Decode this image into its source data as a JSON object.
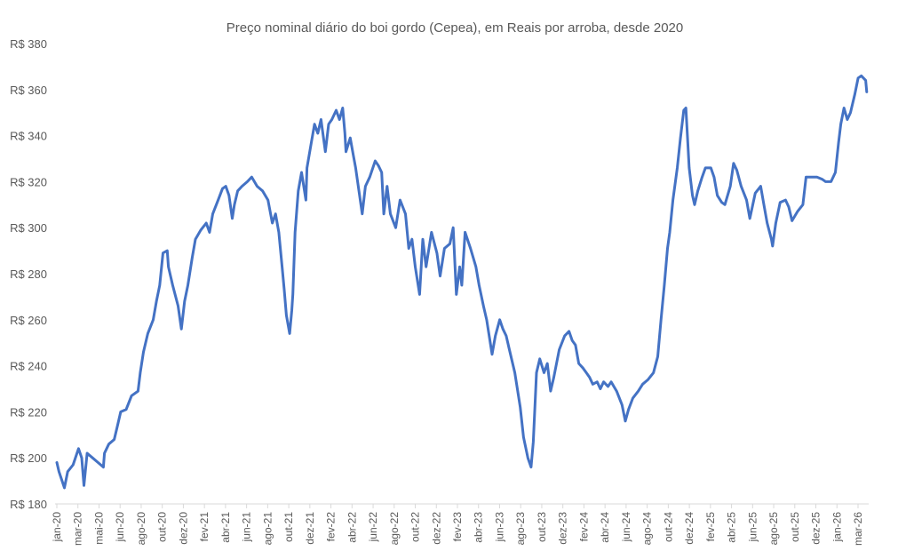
{
  "chart_data": {
    "type": "line",
    "title": "Preço nominal diário do boi gordo (Cepea), em Reais por arroba, desde 2020",
    "xlabel": "",
    "ylabel": "",
    "ylim": [
      180,
      380
    ],
    "y_ticks": [
      180,
      200,
      220,
      240,
      260,
      280,
      300,
      320,
      340,
      360,
      380
    ],
    "y_tick_labels": [
      "R$ 180",
      "R$ 200",
      "R$ 220",
      "R$ 240",
      "R$ 260",
      "R$ 280",
      "R$ 300",
      "R$ 320",
      "R$ 340",
      "R$ 360",
      "R$ 380"
    ],
    "x_unit": "months since jan-20",
    "xlim": [
      0,
      74
    ],
    "x_tick_labels": [
      "jan-20",
      "mar-20",
      "mai-20",
      "jun-20",
      "ago-20",
      "out-20",
      "dez-20",
      "fev-21",
      "abr-21",
      "jun-21",
      "ago-21",
      "out-21",
      "dez-21",
      "fev-22",
      "abr-22",
      "jun-22",
      "ago-22",
      "out-22",
      "dez-22",
      "fev-23",
      "abr-23",
      "jun-23",
      "ago-23",
      "out-23",
      "dez-23",
      "fev-24",
      "abr-24",
      "jun-24",
      "ago-24",
      "out-24",
      "dez-24",
      "fev-25",
      "abr-25",
      "jun-25",
      "ago-25",
      "out-25",
      "dez-25",
      "jan-26",
      "mar-26"
    ],
    "grid": false,
    "legend": "none",
    "series": [
      {
        "name": "Boi gordo (Cepea)",
        "color": "#4472C4",
        "points": [
          [
            0,
            198
          ],
          [
            0.2,
            194
          ],
          [
            0.7,
            187
          ],
          [
            1.0,
            194
          ],
          [
            1.5,
            197
          ],
          [
            2.0,
            204
          ],
          [
            2.3,
            200
          ],
          [
            2.5,
            188
          ],
          [
            2.8,
            202
          ],
          [
            3.3,
            200
          ],
          [
            3.8,
            198
          ],
          [
            4.3,
            196
          ],
          [
            4.4,
            202
          ],
          [
            4.8,
            206
          ],
          [
            5.3,
            208
          ],
          [
            5.6,
            214
          ],
          [
            5.9,
            220
          ],
          [
            6.4,
            221
          ],
          [
            6.9,
            227
          ],
          [
            7.5,
            229
          ],
          [
            7.7,
            237
          ],
          [
            8.0,
            246
          ],
          [
            8.4,
            254
          ],
          [
            8.9,
            260
          ],
          [
            9.2,
            268
          ],
          [
            9.5,
            275
          ],
          [
            9.8,
            289
          ],
          [
            10.2,
            290
          ],
          [
            10.3,
            283
          ],
          [
            10.7,
            275
          ],
          [
            11.2,
            266
          ],
          [
            11.5,
            256
          ],
          [
            11.8,
            268
          ],
          [
            12.1,
            275
          ],
          [
            12.5,
            287
          ],
          [
            12.8,
            295
          ],
          [
            13.3,
            299
          ],
          [
            13.8,
            302
          ],
          [
            14.1,
            298
          ],
          [
            14.4,
            306
          ],
          [
            14.9,
            312
          ],
          [
            15.3,
            317
          ],
          [
            15.6,
            318
          ],
          [
            15.9,
            314
          ],
          [
            16.2,
            304
          ],
          [
            16.4,
            310
          ],
          [
            16.7,
            316
          ],
          [
            17.1,
            318
          ],
          [
            17.6,
            320
          ],
          [
            18.0,
            322
          ],
          [
            18.5,
            318
          ],
          [
            19.0,
            316
          ],
          [
            19.5,
            312
          ],
          [
            19.9,
            302
          ],
          [
            20.2,
            306
          ],
          [
            20.5,
            298
          ],
          [
            20.8,
            283
          ],
          [
            21.0,
            273
          ],
          [
            21.2,
            262
          ],
          [
            21.5,
            254
          ],
          [
            21.7,
            264
          ],
          [
            21.8,
            271
          ],
          [
            22.0,
            298
          ],
          [
            22.3,
            316
          ],
          [
            22.6,
            324
          ],
          [
            23.0,
            312
          ],
          [
            23.1,
            326
          ],
          [
            23.5,
            337
          ],
          [
            23.8,
            345
          ],
          [
            24.1,
            341
          ],
          [
            24.4,
            347
          ],
          [
            24.8,
            333
          ],
          [
            25.1,
            345
          ],
          [
            25.4,
            347
          ],
          [
            25.8,
            351
          ],
          [
            26.1,
            347
          ],
          [
            26.4,
            352
          ],
          [
            26.6,
            341
          ],
          [
            26.7,
            333
          ],
          [
            27.1,
            339
          ],
          [
            27.4,
            331
          ],
          [
            27.6,
            326
          ],
          [
            27.9,
            316
          ],
          [
            28.2,
            306
          ],
          [
            28.5,
            318
          ],
          [
            28.9,
            322
          ],
          [
            29.4,
            329
          ],
          [
            29.7,
            327
          ],
          [
            30.0,
            324
          ],
          [
            30.2,
            306
          ],
          [
            30.5,
            318
          ],
          [
            30.8,
            306
          ],
          [
            31.3,
            300
          ],
          [
            31.7,
            312
          ],
          [
            32.2,
            306
          ],
          [
            32.5,
            291
          ],
          [
            32.8,
            295
          ],
          [
            33.1,
            283
          ],
          [
            33.5,
            271
          ],
          [
            33.8,
            295
          ],
          [
            34.1,
            283
          ],
          [
            34.6,
            298
          ],
          [
            35.1,
            289
          ],
          [
            35.4,
            279
          ],
          [
            35.8,
            291
          ],
          [
            36.3,
            293
          ],
          [
            36.6,
            300
          ],
          [
            36.9,
            271
          ],
          [
            37.2,
            283
          ],
          [
            37.4,
            275
          ],
          [
            37.7,
            298
          ],
          [
            38.2,
            291
          ],
          [
            38.7,
            283
          ],
          [
            39.0,
            275
          ],
          [
            39.4,
            266
          ],
          [
            39.7,
            260
          ],
          [
            40.2,
            245
          ],
          [
            40.5,
            253
          ],
          [
            40.9,
            260
          ],
          [
            41.2,
            256
          ],
          [
            41.5,
            253
          ],
          [
            41.8,
            247
          ],
          [
            42.3,
            237
          ],
          [
            42.8,
            222
          ],
          [
            43.1,
            209
          ],
          [
            43.5,
            200
          ],
          [
            43.8,
            196
          ],
          [
            44.0,
            207
          ],
          [
            44.3,
            237
          ],
          [
            44.6,
            243
          ],
          [
            45.0,
            237
          ],
          [
            45.3,
            241
          ],
          [
            45.6,
            229
          ],
          [
            45.9,
            235
          ],
          [
            46.4,
            247
          ],
          [
            46.9,
            253
          ],
          [
            47.3,
            255
          ],
          [
            47.6,
            251
          ],
          [
            47.9,
            249
          ],
          [
            48.2,
            241
          ],
          [
            48.6,
            239
          ],
          [
            48.9,
            237
          ],
          [
            49.2,
            235
          ],
          [
            49.5,
            232
          ],
          [
            49.9,
            233
          ],
          [
            50.2,
            230
          ],
          [
            50.5,
            233
          ],
          [
            50.9,
            231
          ],
          [
            51.2,
            233
          ],
          [
            51.7,
            229
          ],
          [
            52.2,
            223
          ],
          [
            52.5,
            216
          ],
          [
            52.8,
            221
          ],
          [
            53.2,
            226
          ],
          [
            53.7,
            229
          ],
          [
            54.1,
            232
          ],
          [
            54.6,
            234
          ],
          [
            55.1,
            237
          ],
          [
            55.5,
            244
          ],
          [
            55.8,
            260
          ],
          [
            56.1,
            275
          ],
          [
            56.4,
            291
          ],
          [
            56.6,
            298
          ],
          [
            56.9,
            312
          ],
          [
            57.3,
            326
          ],
          [
            57.6,
            339
          ],
          [
            57.9,
            351
          ],
          [
            58.1,
            352
          ],
          [
            58.4,
            326
          ],
          [
            58.7,
            314
          ],
          [
            58.9,
            310
          ],
          [
            59.2,
            316
          ],
          [
            59.6,
            322
          ],
          [
            59.9,
            326
          ],
          [
            60.4,
            326
          ],
          [
            60.7,
            322
          ],
          [
            61.0,
            314
          ],
          [
            61.4,
            311
          ],
          [
            61.7,
            310
          ],
          [
            62.2,
            318
          ],
          [
            62.5,
            328
          ],
          [
            62.8,
            325
          ],
          [
            63.2,
            318
          ],
          [
            63.7,
            312
          ],
          [
            64.0,
            304
          ],
          [
            64.5,
            315
          ],
          [
            65.0,
            318
          ],
          [
            65.3,
            310
          ],
          [
            65.6,
            302
          ],
          [
            66.0,
            295
          ],
          [
            66.1,
            292
          ],
          [
            66.4,
            302
          ],
          [
            66.8,
            311
          ],
          [
            67.3,
            312
          ],
          [
            67.6,
            309
          ],
          [
            67.9,
            303
          ],
          [
            68.4,
            307
          ],
          [
            68.9,
            310
          ],
          [
            69.2,
            322
          ],
          [
            69.7,
            322
          ],
          [
            70.2,
            322
          ],
          [
            70.7,
            321
          ],
          [
            71.0,
            320
          ],
          [
            71.5,
            320
          ],
          [
            71.9,
            324
          ],
          [
            72.2,
            337
          ],
          [
            72.4,
            345
          ],
          [
            72.7,
            352
          ],
          [
            73.0,
            347
          ],
          [
            73.3,
            350
          ],
          [
            73.7,
            358
          ],
          [
            74.0,
            365
          ],
          [
            74.3,
            366
          ],
          [
            74.7,
            364
          ],
          [
            74.8,
            359
          ]
        ]
      }
    ]
  }
}
